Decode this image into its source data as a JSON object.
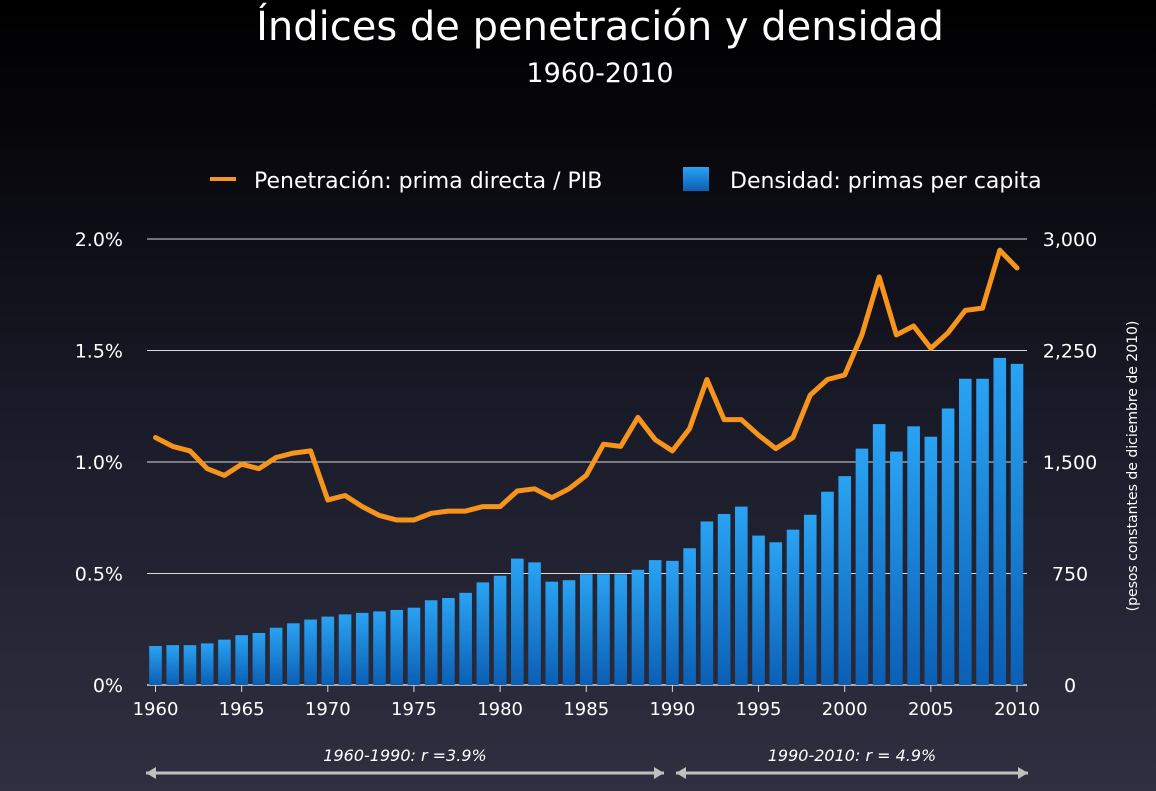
{
  "title": "Índices de penetración y densidad",
  "subtitle": "1960-2010",
  "colors": {
    "line": "#f7941d",
    "bar_top": "#2aa3f3",
    "bar_bottom": "#0b5fb4",
    "grid": "#d9d9d9"
  },
  "chart_data": {
    "type": "bar+line",
    "x": [
      1960,
      1961,
      1962,
      1963,
      1964,
      1965,
      1966,
      1967,
      1968,
      1969,
      1970,
      1971,
      1972,
      1973,
      1974,
      1975,
      1976,
      1977,
      1978,
      1979,
      1980,
      1981,
      1982,
      1983,
      1984,
      1985,
      1986,
      1987,
      1988,
      1989,
      1990,
      1991,
      1992,
      1993,
      1994,
      1995,
      1996,
      1997,
      1998,
      1999,
      2000,
      2001,
      2002,
      2003,
      2004,
      2005,
      2006,
      2007,
      2008,
      2009,
      2010
    ],
    "x_ticks": [
      "1960",
      "1965",
      "1970",
      "1975",
      "1980",
      "1985",
      "1990",
      "1995",
      "2000",
      "2005",
      "2010"
    ],
    "legend": {
      "placement": "top",
      "line_label": "Penetración: prima directa / PIB",
      "bar_label": "Densidad: primas per capita"
    },
    "left_axis": {
      "ylim": [
        0,
        2.0
      ],
      "ticks": [
        "0%",
        "0.5%",
        "1.0%",
        "1.5%",
        "2.0%"
      ]
    },
    "right_axis": {
      "ylim": [
        0,
        3000
      ],
      "ticks": [
        "0",
        "750",
        "1,500",
        "2,250",
        "3,000"
      ],
      "label": "(pesos constantes de diciembre de 2010)"
    },
    "grid": true,
    "series": [
      {
        "name": "Densidad: primas per capita",
        "type": "bar",
        "axis": "right",
        "values": [
          262,
          268,
          268,
          280,
          305,
          335,
          350,
          385,
          415,
          440,
          460,
          475,
          485,
          495,
          505,
          520,
          570,
          585,
          620,
          690,
          735,
          850,
          825,
          695,
          705,
          745,
          745,
          745,
          775,
          840,
          835,
          920,
          1100,
          1150,
          1200,
          1005,
          960,
          1045,
          1145,
          1300,
          1405,
          1590,
          1755,
          1570,
          1740,
          1670,
          1860,
          2060,
          2060,
          2200,
          2160
        ]
      },
      {
        "name": "Penetración: prima directa / PIB",
        "type": "line",
        "axis": "left",
        "values": [
          1.11,
          1.07,
          1.05,
          0.97,
          0.94,
          0.99,
          0.97,
          1.02,
          1.04,
          1.05,
          0.83,
          0.85,
          0.8,
          0.76,
          0.74,
          0.74,
          0.77,
          0.78,
          0.78,
          0.8,
          0.8,
          0.87,
          0.88,
          0.84,
          0.88,
          0.94,
          1.08,
          1.07,
          1.2,
          1.1,
          1.05,
          1.15,
          1.37,
          1.19,
          1.19,
          1.12,
          1.06,
          1.11,
          1.3,
          1.37,
          1.39,
          1.57,
          1.83,
          1.57,
          1.61,
          1.51,
          1.58,
          1.68,
          1.69,
          1.95,
          1.87
        ]
      }
    ],
    "annotations": [
      {
        "text": "1960-1990:   r =3.9%",
        "from": 1960,
        "to": 1990
      },
      {
        "text": "1990-2010:   r  = 4.9%",
        "from": 1990,
        "to": 2010
      }
    ]
  }
}
